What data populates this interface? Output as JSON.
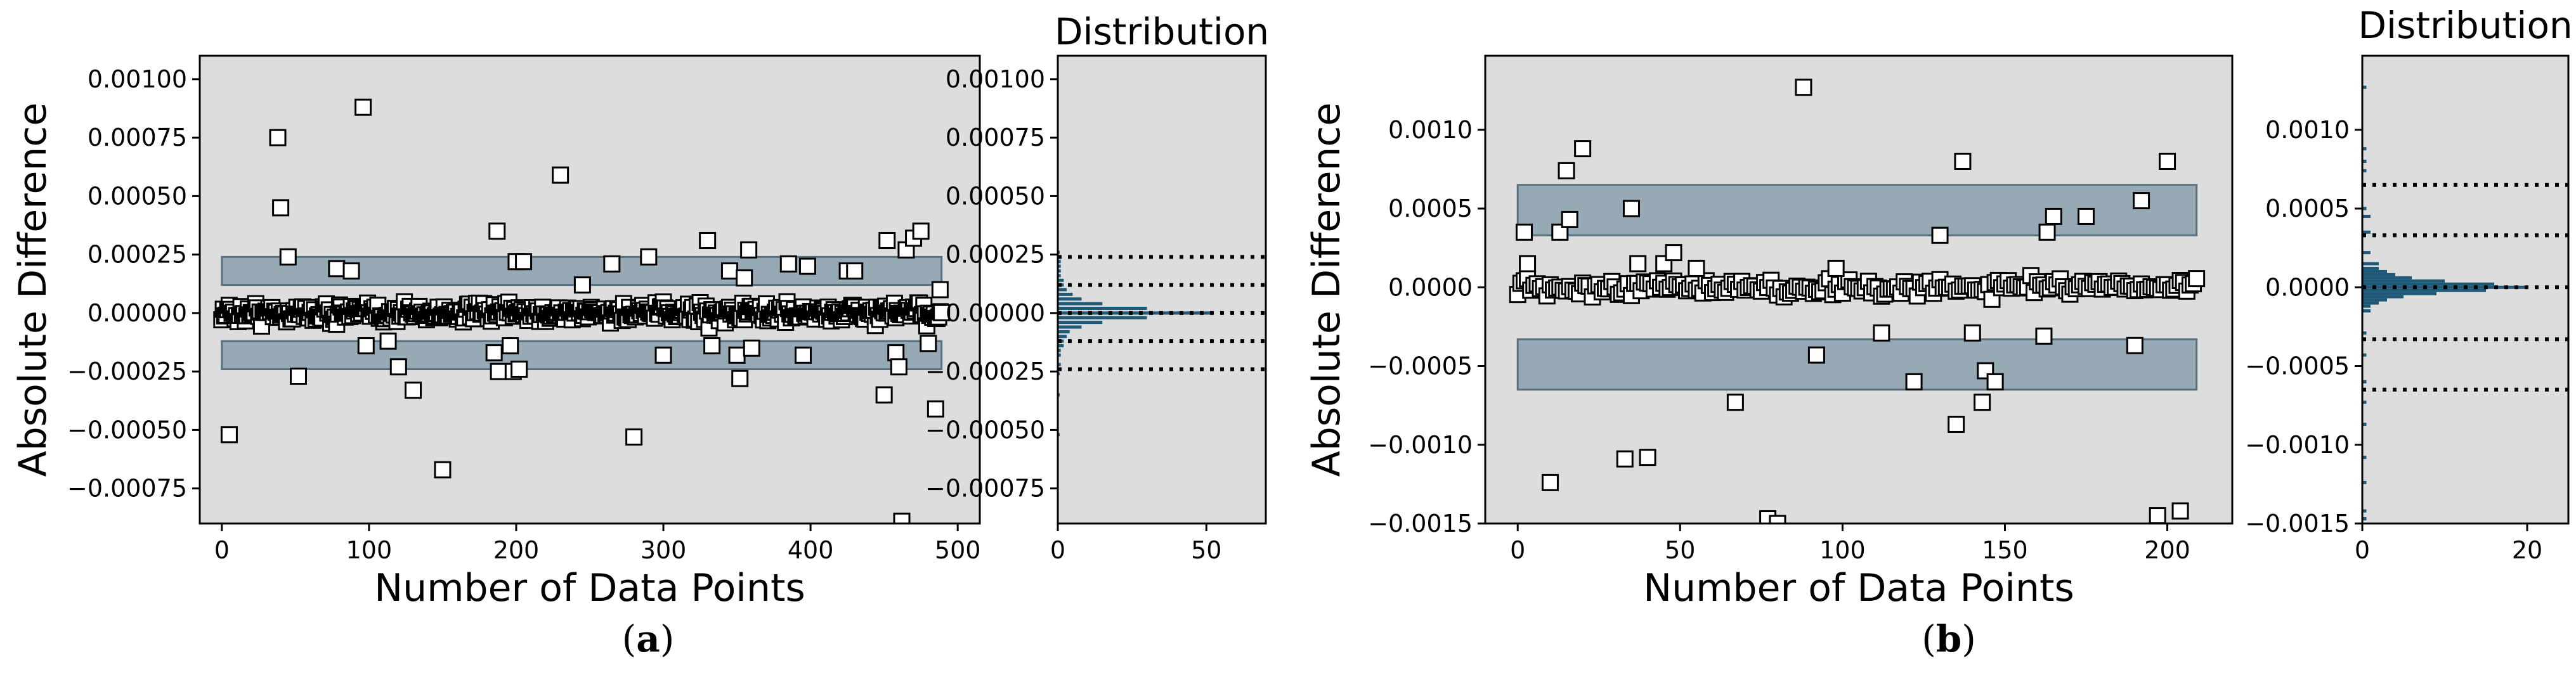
{
  "colors": {
    "plot_bg": "#dddddd",
    "band_fill": "#7e97a6",
    "band_stroke": "#57707e",
    "hist": "#1e5a78"
  },
  "chart_data": [
    {
      "type": "scatter",
      "panel": "a",
      "caption": {
        "open": "(",
        "letter": "a",
        "close": ")"
      },
      "xlabel": "Number of Data Points",
      "ylabel": "Absolute Difference",
      "xlim": [
        -15,
        515
      ],
      "ylim": [
        -0.0009,
        0.0011
      ],
      "xticks": [
        0,
        100,
        200,
        300,
        400,
        500
      ],
      "xtick_labels": [
        "0",
        "100",
        "200",
        "300",
        "400",
        "500"
      ],
      "yticks": [
        0.001,
        0.00075,
        0.0005,
        0.00025,
        0.0,
        -0.00025,
        -0.0005,
        -0.00075
      ],
      "ytick_labels": [
        "0.00100",
        "0.00075",
        "0.00050",
        "0.00025",
        "0.00000",
        "−0.00025",
        "−0.00050",
        "−0.00075"
      ],
      "n_points": 490,
      "bands": [
        [
          0.00012,
          0.00024
        ],
        [
          -0.00024,
          -0.00012
        ]
      ],
      "outliers": [
        [
          5,
          -0.00052
        ],
        [
          38,
          0.00075
        ],
        [
          40,
          0.00045
        ],
        [
          45,
          0.00024
        ],
        [
          52,
          -0.00027
        ],
        [
          78,
          0.00019
        ],
        [
          88,
          0.00018
        ],
        [
          96,
          0.00088
        ],
        [
          98,
          -0.00014
        ],
        [
          113,
          -0.00012
        ],
        [
          120,
          -0.00023
        ],
        [
          130,
          -0.00033
        ],
        [
          150,
          -0.00067
        ],
        [
          185,
          -0.00017
        ],
        [
          187,
          0.00035
        ],
        [
          188,
          -0.00025
        ],
        [
          196,
          -0.00014
        ],
        [
          198,
          -0.00025
        ],
        [
          200,
          0.00022
        ],
        [
          202,
          -0.00024
        ],
        [
          205,
          0.00022
        ],
        [
          230,
          0.00059
        ],
        [
          245,
          0.00012
        ],
        [
          265,
          0.00021
        ],
        [
          280,
          -0.00053
        ],
        [
          290,
          0.00024
        ],
        [
          300,
          -0.00018
        ],
        [
          330,
          0.00031
        ],
        [
          333,
          -0.00014
        ],
        [
          345,
          0.00018
        ],
        [
          350,
          -0.00018
        ],
        [
          352,
          -0.00028
        ],
        [
          355,
          0.00015
        ],
        [
          358,
          0.00027
        ],
        [
          360,
          -0.00015
        ],
        [
          385,
          0.00021
        ],
        [
          395,
          -0.00018
        ],
        [
          398,
          0.0002
        ],
        [
          425,
          0.00018
        ],
        [
          430,
          0.00018
        ],
        [
          450,
          -0.00035
        ],
        [
          452,
          0.00031
        ],
        [
          458,
          -0.00017
        ],
        [
          460,
          -0.00023
        ],
        [
          462,
          -0.00089
        ],
        [
          465,
          0.00027
        ],
        [
          470,
          0.00032
        ],
        [
          475,
          0.00035
        ],
        [
          480,
          -0.00013
        ],
        [
          485,
          -0.00041
        ],
        [
          488,
          0.0001
        ]
      ],
      "hist": {
        "title": "Distribution",
        "xlim": [
          0,
          70
        ],
        "xticks": [
          0,
          50
        ],
        "xtick_labels": [
          "0",
          "50"
        ],
        "lines": [
          0.00024,
          0.00012,
          0.0,
          -0.00012,
          -0.00024
        ],
        "bins": [
          [
            0.00026,
            0.5
          ],
          [
            0.00024,
            1
          ],
          [
            0.00022,
            1
          ],
          [
            0.0002,
            1
          ],
          [
            0.00018,
            1
          ],
          [
            0.00016,
            1
          ],
          [
            0.00014,
            2
          ],
          [
            0.00012,
            2
          ],
          [
            0.0001,
            3
          ],
          [
            8e-05,
            5
          ],
          [
            6e-05,
            8
          ],
          [
            4e-05,
            15
          ],
          [
            2e-05,
            30
          ],
          [
            0.0,
            52
          ],
          [
            -2e-05,
            30
          ],
          [
            -4e-05,
            15
          ],
          [
            -6e-05,
            8
          ],
          [
            -8e-05,
            4
          ],
          [
            -0.0001,
            3
          ],
          [
            -0.00012,
            2
          ],
          [
            -0.00014,
            2
          ],
          [
            -0.00016,
            1
          ],
          [
            -0.00018,
            1
          ],
          [
            -0.00022,
            1
          ],
          [
            -0.00026,
            0.5
          ],
          [
            -0.00035,
            0.5
          ],
          [
            -0.00052,
            0.5
          ]
        ]
      }
    },
    {
      "type": "scatter",
      "panel": "b",
      "caption": {
        "open": "(",
        "letter": "b",
        "close": ")"
      },
      "xlabel": "Number of Data Points",
      "ylabel": "Absolute Difference",
      "xlim": [
        -10,
        220
      ],
      "ylim": [
        -0.0015,
        0.00147
      ],
      "xticks": [
        0,
        50,
        100,
        150,
        200
      ],
      "xtick_labels": [
        "0",
        "50",
        "100",
        "150",
        "200"
      ],
      "yticks": [
        0.001,
        0.0005,
        0.0,
        -0.0005,
        -0.001,
        -0.0015
      ],
      "ytick_labels": [
        "0.0010",
        "0.0005",
        "0.0000",
        "−0.0005",
        "−0.0010",
        "−0.0015"
      ],
      "n_points": 210,
      "bands": [
        [
          0.00033,
          0.00065
        ],
        [
          -0.00065,
          -0.00033
        ]
      ],
      "outliers": [
        [
          2,
          0.00035
        ],
        [
          3,
          0.00015
        ],
        [
          10,
          -0.00124
        ],
        [
          13,
          0.00035
        ],
        [
          15,
          0.00074
        ],
        [
          16,
          0.00043
        ],
        [
          20,
          0.00088
        ],
        [
          33,
          -0.00109
        ],
        [
          35,
          0.0005
        ],
        [
          37,
          0.00015
        ],
        [
          40,
          -0.00108
        ],
        [
          45,
          0.00015
        ],
        [
          48,
          0.00022
        ],
        [
          55,
          0.00012
        ],
        [
          67,
          -0.00073
        ],
        [
          77,
          -0.00147
        ],
        [
          80,
          -0.0015
        ],
        [
          88,
          0.00127
        ],
        [
          92,
          -0.00043
        ],
        [
          98,
          0.00012
        ],
        [
          112,
          -0.00029
        ],
        [
          122,
          -0.0006
        ],
        [
          130,
          0.00033
        ],
        [
          135,
          -0.00087
        ],
        [
          137,
          0.0008
        ],
        [
          140,
          -0.00029
        ],
        [
          143,
          -0.00073
        ],
        [
          144,
          -0.00053
        ],
        [
          147,
          -0.0006
        ],
        [
          162,
          -0.00031
        ],
        [
          163,
          0.00035
        ],
        [
          165,
          0.00045
        ],
        [
          175,
          0.00045
        ],
        [
          190,
          -0.00037
        ],
        [
          192,
          0.00055
        ],
        [
          197,
          -0.00145
        ],
        [
          200,
          0.0008
        ],
        [
          204,
          -0.00142
        ]
      ],
      "hist": {
        "title": "Distribution",
        "xlim": [
          0,
          25
        ],
        "xticks": [
          0,
          20
        ],
        "xtick_labels": [
          "0",
          "20"
        ],
        "lines": [
          0.00065,
          0.00033,
          0.0,
          -0.00033,
          -0.00065
        ],
        "bins": [
          [
            0.00127,
            0.5
          ],
          [
            0.00088,
            0.5
          ],
          [
            0.0008,
            0.5
          ],
          [
            0.00074,
            0.5
          ],
          [
            0.0005,
            0.5
          ],
          [
            0.00045,
            1
          ],
          [
            0.00035,
            1
          ],
          [
            0.00022,
            1
          ],
          [
            0.00015,
            2
          ],
          [
            0.00012,
            2
          ],
          [
            0.0001,
            3
          ],
          [
            8e-05,
            4
          ],
          [
            6e-05,
            6
          ],
          [
            4e-05,
            10
          ],
          [
            2e-05,
            16
          ],
          [
            0.0,
            20
          ],
          [
            -2e-05,
            15
          ],
          [
            -4e-05,
            9
          ],
          [
            -6e-05,
            5
          ],
          [
            -8e-05,
            3
          ],
          [
            -0.0001,
            2
          ],
          [
            -0.00012,
            1
          ],
          [
            -0.00015,
            1
          ],
          [
            -0.00029,
            0.5
          ],
          [
            -0.00043,
            0.5
          ],
          [
            -0.0006,
            0.5
          ],
          [
            -0.00073,
            0.5
          ],
          [
            -0.00087,
            0.5
          ],
          [
            -0.00108,
            0.5
          ],
          [
            -0.00124,
            0.5
          ],
          [
            -0.00142,
            0.5
          ],
          [
            -0.00147,
            0.5
          ]
        ]
      }
    }
  ]
}
